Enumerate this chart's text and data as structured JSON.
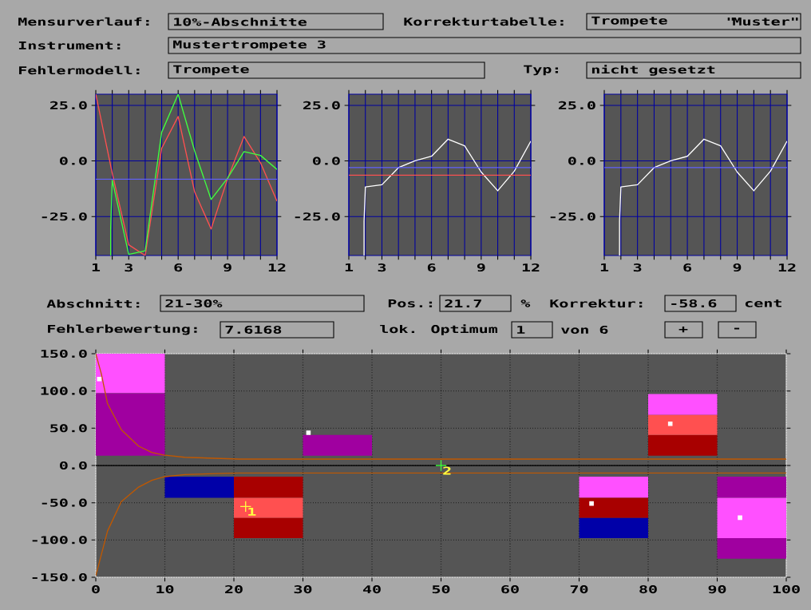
{
  "chart_data": [
    {
      "type": "other",
      "annotations": [
        "Mensurverlauf:",
        "10%-Abschnitte",
        "Korrekturtabelle:",
        "Trompete",
        "\"Muster\"",
        "Instrument:",
        "Mustertrompete 3",
        "Fehlermodell:",
        "Trompete",
        "Typ:",
        "nicht gesetzt"
      ]
    },
    {
      "type": "line",
      "xlim": [
        1,
        12
      ],
      "ylim": [
        -42.5,
        30
      ],
      "xticks": [
        1,
        {
          "value": 2,
          "label": null
        },
        3,
        {
          "value": 4,
          "label": null
        },
        {
          "value": 5,
          "label": null
        },
        6,
        {
          "value": 7,
          "label": null
        },
        {
          "value": 8,
          "label": null
        },
        9,
        {
          "value": 10,
          "label": null
        },
        {
          "value": 11,
          "label": null
        },
        12
      ],
      "yticks": [
        {
          "value": -25,
          "label": "-25.0"
        },
        {
          "value": 0,
          "label": "0.0"
        },
        {
          "value": 25,
          "label": "25.0"
        }
      ],
      "grid": true,
      "ref_lines": [
        {
          "axis": "y",
          "value": -8.2,
          "color": "#6060ff"
        }
      ],
      "series": [
        {
          "color": "#ff5050",
          "x": [
            1,
            2,
            3,
            4,
            5,
            6,
            7,
            8,
            9,
            10,
            11,
            12
          ],
          "values": [
            30,
            -5.6,
            -37.7,
            -42.5,
            5.7,
            20,
            -13.9,
            -30.6,
            -8,
            11,
            -0.8,
            -18.1
          ]
        },
        {
          "color": "#40ff40",
          "x": [
            1.9,
            1.9,
            2,
            3,
            4,
            5,
            6,
            7,
            8,
            9,
            10,
            11,
            12
          ],
          "values": [
            -42.5,
            -31,
            -8.6,
            -42,
            -40.4,
            12.9,
            30,
            4.5,
            -17.3,
            -7.7,
            4.2,
            2.5,
            -3.8
          ]
        }
      ]
    },
    {
      "type": "line",
      "xlim": [
        1,
        12
      ],
      "ylim": [
        -42.5,
        30
      ],
      "xticks": [
        1,
        {
          "value": 2,
          "label": null
        },
        3,
        {
          "value": 4,
          "label": null
        },
        {
          "value": 5,
          "label": null
        },
        6,
        {
          "value": 7,
          "label": null
        },
        {
          "value": 8,
          "label": null
        },
        9,
        {
          "value": 10,
          "label": null
        },
        {
          "value": 11,
          "label": null
        },
        12
      ],
      "yticks": [
        {
          "value": -25,
          "label": "-25.0"
        },
        {
          "value": 0,
          "label": "0.0"
        },
        {
          "value": 25,
          "label": "25.0"
        }
      ],
      "grid": true,
      "ref_lines": [
        {
          "axis": "y",
          "value": -3,
          "color": "#6060ff"
        },
        {
          "axis": "y",
          "value": -6.4,
          "color": "#ff5050"
        }
      ],
      "series": [
        {
          "color": "#ffffff",
          "x": [
            1.92,
            1.92,
            2,
            3,
            4,
            5,
            6,
            7,
            8,
            9,
            10,
            11,
            12
          ],
          "values": [
            -42.5,
            -27.1,
            -11.7,
            -10.7,
            -3,
            0.1,
            2.1,
            9.8,
            6.8,
            -5,
            -13.4,
            -4.6,
            8.9
          ]
        }
      ]
    },
    {
      "type": "line",
      "xlim": [
        1,
        12
      ],
      "ylim": [
        -42.5,
        30
      ],
      "xticks": [
        1,
        {
          "value": 2,
          "label": null
        },
        3,
        {
          "value": 4,
          "label": null
        },
        {
          "value": 5,
          "label": null
        },
        6,
        {
          "value": 7,
          "label": null
        },
        {
          "value": 8,
          "label": null
        },
        9,
        {
          "value": 10,
          "label": null
        },
        {
          "value": 11,
          "label": null
        },
        12
      ],
      "yticks": [
        {
          "value": -25,
          "label": "-25.0"
        },
        {
          "value": 0,
          "label": "0.0"
        },
        {
          "value": 25,
          "label": "25.0"
        }
      ],
      "grid": true,
      "ref_lines": [
        {
          "axis": "y",
          "value": -3,
          "color": "#6060ff"
        }
      ],
      "series": [
        {
          "color": "#ffffff",
          "x": [
            1.92,
            1.92,
            2,
            3,
            4,
            5,
            6,
            7,
            8,
            9,
            10,
            11,
            12
          ],
          "values": [
            -42.5,
            -27.1,
            -11.7,
            -10.7,
            -3,
            0.1,
            2.1,
            9.8,
            6.8,
            -5,
            -13.4,
            -4.6,
            8.9
          ]
        }
      ]
    },
    {
      "type": "other",
      "annotations": [
        "Abschnitt:",
        "21-30%",
        "Pos.:",
        "21.7",
        "%",
        "Korrektur:",
        "-58.6",
        "cent",
        "Fehlerbewertung:",
        "7.6168",
        "lok. Optimum",
        "1",
        "von 6",
        "+",
        "-"
      ]
    },
    {
      "type": "bar",
      "x": [
        5,
        15,
        25,
        35,
        45,
        55,
        65,
        75,
        85,
        95
      ],
      "xlim": [
        0,
        100
      ],
      "ylim": [
        -150,
        150
      ],
      "xticks": [
        0,
        10,
        20,
        30,
        40,
        50,
        60,
        70,
        80,
        90,
        100
      ],
      "yticks": [
        {
          "value": -150,
          "label": "-150.0"
        },
        {
          "value": -100,
          "label": "-100.0"
        },
        {
          "value": -50,
          "label": "-50.0"
        },
        {
          "value": 0,
          "label": "0.0"
        },
        {
          "value": 50,
          "label": "50.0"
        },
        {
          "value": 100,
          "label": "100.0"
        },
        {
          "value": 150,
          "label": "150.0"
        }
      ],
      "grid": true,
      "ref_lines": [
        {
          "axis": "y",
          "value": 0,
          "color": "#000000"
        }
      ],
      "series": [
        {
          "base": [
            13,
            -15,
            -15,
            13,
            null,
            null,
            null,
            -15,
            13,
            -15
          ],
          "values": [
            84,
            -28.5,
            -28.5,
            28,
            null,
            null,
            null,
            -28.5,
            28,
            -28.5
          ],
          "colors": [
            "#a000a0",
            "#0000a8",
            "#a80000",
            "#a000a0",
            null,
            null,
            null,
            "#ff50ff",
            "#a80000",
            "#a000a0"
          ]
        },
        {
          "base": [
            97,
            null,
            -43.5,
            null,
            null,
            null,
            null,
            -43.5,
            41,
            -43.5
          ],
          "values": [
            53,
            null,
            -27,
            null,
            null,
            null,
            null,
            -27,
            27,
            -54
          ],
          "colors": [
            "#ff50ff",
            null,
            "#ff5050",
            null,
            null,
            null,
            null,
            "#a80000",
            "#ff5050",
            "#ff50ff"
          ]
        },
        {
          "base": [
            null,
            null,
            -70.5,
            null,
            null,
            null,
            null,
            -70.5,
            68,
            -97.5
          ],
          "values": [
            null,
            null,
            -27,
            null,
            null,
            null,
            null,
            -27,
            28,
            -27.5
          ],
          "colors": [
            null,
            null,
            "#a80000",
            null,
            null,
            null,
            null,
            "#0000a8",
            "#ff50ff",
            "#a000a0"
          ]
        },
        {
          "type": "line",
          "color": "#c05800",
          "x": [
            0,
            0.8,
            1.7,
            3.7,
            6.2,
            8.1,
            9.8,
            12.9,
            20.8,
            100
          ],
          "values": [
            150,
            123,
            83,
            48,
            26,
            17.5,
            14,
            11,
            8.6,
            8.6
          ]
        },
        {
          "type": "line",
          "color": "#c05800",
          "x": [
            0,
            1.7,
            3.7,
            6.2,
            8.1,
            9.8,
            12.9,
            20.8,
            100
          ],
          "values": [
            -148,
            -88,
            -48.5,
            -29,
            -20,
            -15.3,
            -12.1,
            -10,
            -10
          ]
        },
        {
          "type": "scatter",
          "marker": "square",
          "color": "#ffffff",
          "x": [
            0.5,
            30.8,
            71.8,
            83.2,
            93.3
          ],
          "values": [
            116,
            44,
            -51,
            56,
            -70
          ]
        },
        {
          "type": "scatter",
          "marker": "cross",
          "color": "#ffff40",
          "x": [
            21.7
          ],
          "values": [
            -55
          ]
        },
        {
          "type": "scatter",
          "marker": "cross",
          "color": "#40ff40",
          "x": [
            50
          ],
          "values": [
            0
          ]
        }
      ],
      "annotations": [
        {
          "text": "1",
          "x": 21.7,
          "y": -55
        },
        {
          "text": "2",
          "x": 50,
          "y": 0
        }
      ]
    }
  ]
}
